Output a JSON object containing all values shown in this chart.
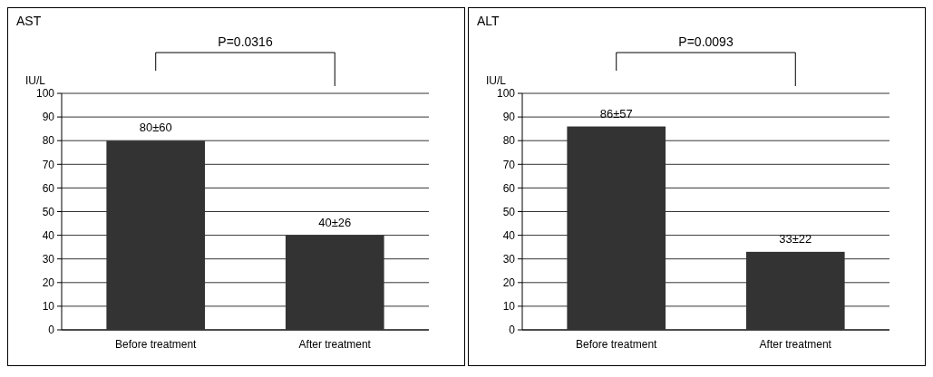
{
  "chart_data": [
    {
      "type": "bar",
      "title": "AST",
      "ylabel": "IU/L",
      "categories": [
        "Before treatment",
        "After treatment"
      ],
      "values": [
        80,
        40
      ],
      "value_labels": [
        "80±60",
        "40±26"
      ],
      "color": "#333333",
      "ylim": [
        0,
        100
      ],
      "yticks": [
        0,
        10,
        20,
        30,
        40,
        50,
        60,
        70,
        80,
        90,
        100
      ],
      "grid": "y",
      "annotations": [
        "P=0.0316"
      ]
    },
    {
      "type": "bar",
      "title": "ALT",
      "ylabel": "IU/L",
      "categories": [
        "Before treatment",
        "After treatment"
      ],
      "values": [
        86,
        33
      ],
      "value_labels": [
        "86±57",
        "33±22"
      ],
      "color": "#333333",
      "ylim": [
        0,
        100
      ],
      "yticks": [
        0,
        10,
        20,
        30,
        40,
        50,
        60,
        70,
        80,
        90,
        100
      ],
      "grid": "y",
      "annotations": [
        "P=0.0093"
      ]
    }
  ]
}
